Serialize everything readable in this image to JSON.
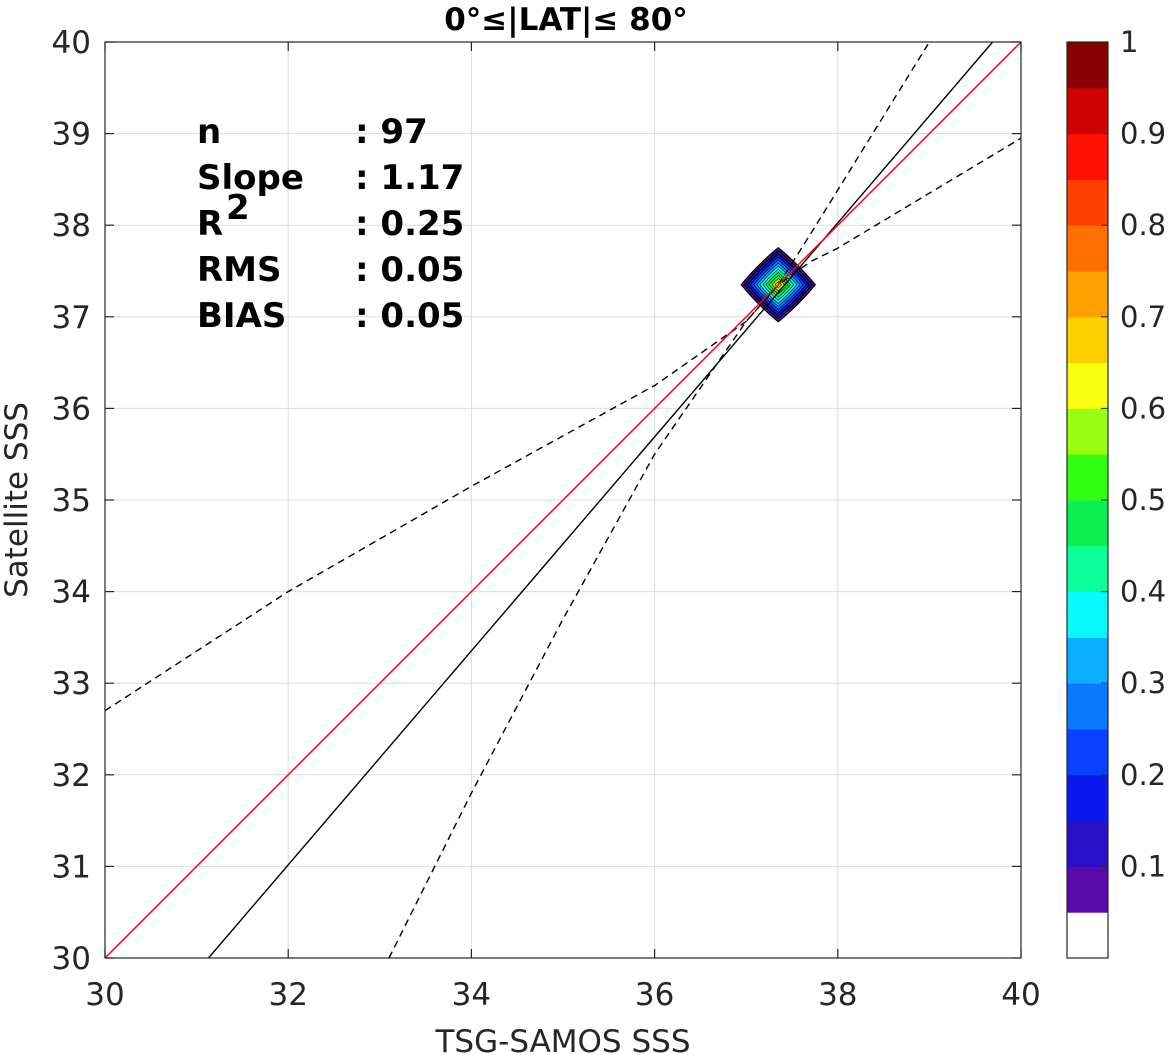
{
  "chart_data": {
    "type": "scatter",
    "title": "0°≤|LAT|≤ 80°",
    "xlabel": "TSG-SAMOS SSS",
    "ylabel": "Satellite SSS",
    "xlim": [
      30,
      40
    ],
    "ylim": [
      30,
      40
    ],
    "xticks": [
      "30",
      "32",
      "34",
      "36",
      "38",
      "40"
    ],
    "yticks": [
      "30",
      "31",
      "32",
      "33",
      "34",
      "35",
      "36",
      "37",
      "38",
      "39",
      "40"
    ],
    "grid": true,
    "stats": [
      {
        "label": "n",
        "value": ": 97"
      },
      {
        "label": "Slope",
        "value": ": 1.17"
      },
      {
        "label": "R",
        "sup": "2",
        "value": ": 0.25"
      },
      {
        "label": "RMS",
        "value": ": 0.05"
      },
      {
        "label": "BIAS",
        "value": ": 0.05"
      }
    ],
    "density_center": {
      "x": 37.35,
      "y": 37.35
    },
    "lines": {
      "one_to_one": {
        "color": "#ff0000",
        "points": [
          [
            30,
            30
          ],
          [
            40,
            40
          ]
        ]
      },
      "regression": {
        "color": "#000000",
        "points": [
          [
            31.13,
            30
          ],
          [
            39.69,
            40
          ]
        ]
      },
      "upper_confidence": {
        "color": "#000000",
        "dashed": true,
        "points": [
          [
            30,
            32.7
          ],
          [
            32,
            34.0
          ],
          [
            34,
            35.15
          ],
          [
            36,
            36.25
          ],
          [
            37.0,
            36.95
          ],
          [
            37.35,
            37.35
          ],
          [
            37.7,
            37.6
          ],
          [
            38,
            37.75
          ],
          [
            40,
            38.95
          ]
        ]
      },
      "lower_confidence": {
        "color": "#000000",
        "dashed": true,
        "points": [
          [
            33.1,
            30
          ],
          [
            34,
            31.8
          ],
          [
            35,
            33.7
          ],
          [
            36,
            35.5
          ],
          [
            37.0,
            36.95
          ],
          [
            37.35,
            37.35
          ],
          [
            37.7,
            37.9
          ],
          [
            39,
            40
          ]
        ]
      }
    },
    "colorbar": {
      "ticks": [
        "0.1",
        "0.2",
        "0.3",
        "0.4",
        "0.5",
        "0.6",
        "0.7",
        "0.8",
        "0.9",
        "1"
      ],
      "colors": [
        "#ffffff",
        "#5a0aa8",
        "#2a10c8",
        "#0a18f0",
        "#0a40ff",
        "#0a78ff",
        "#0ab0ff",
        "#0af8ff",
        "#0aff9a",
        "#0af050",
        "#30ff10",
        "#98ff10",
        "#f8ff10",
        "#ffd000",
        "#ffa000",
        "#ff7000",
        "#ff4000",
        "#ff1000",
        "#d00000",
        "#880000"
      ]
    }
  }
}
